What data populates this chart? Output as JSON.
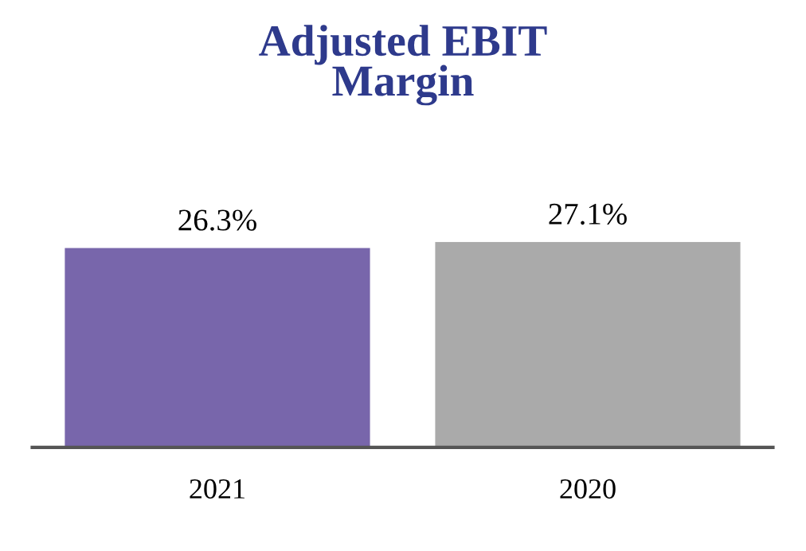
{
  "chart_data": {
    "type": "bar",
    "title": "Adjusted EBIT\nMargin",
    "categories": [
      "2021",
      "2020"
    ],
    "values": [
      26.3,
      27.1
    ],
    "value_labels": [
      "26.3%",
      "27.1%"
    ],
    "colors": [
      "#7866ab",
      "#aaaaaa"
    ],
    "grid": false,
    "legend": false
  }
}
